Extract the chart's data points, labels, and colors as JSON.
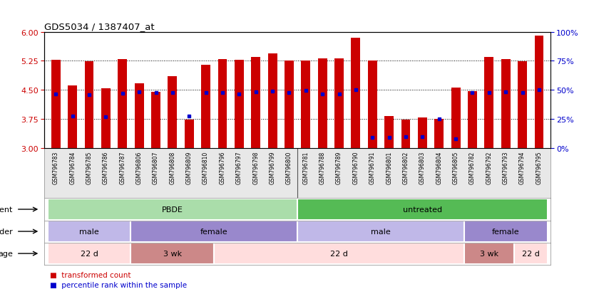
{
  "title": "GDS5034 / 1387407_at",
  "samples": [
    "GSM796783",
    "GSM796784",
    "GSM796785",
    "GSM796786",
    "GSM796787",
    "GSM796806",
    "GSM796807",
    "GSM796808",
    "GSM796809",
    "GSM796810",
    "GSM796796",
    "GSM796797",
    "GSM796798",
    "GSM796799",
    "GSM796800",
    "GSM796781",
    "GSM796788",
    "GSM796789",
    "GSM796790",
    "GSM796791",
    "GSM796801",
    "GSM796802",
    "GSM796803",
    "GSM796804",
    "GSM796805",
    "GSM796782",
    "GSM796792",
    "GSM796793",
    "GSM796794",
    "GSM796795"
  ],
  "bar_heights": [
    5.28,
    4.62,
    5.24,
    4.54,
    5.3,
    4.67,
    4.45,
    4.85,
    3.73,
    5.14,
    5.3,
    5.28,
    5.35,
    5.44,
    5.25,
    5.25,
    5.31,
    5.31,
    5.85,
    5.25,
    3.82,
    3.74,
    3.79,
    3.75,
    4.56,
    4.46,
    5.35,
    5.3,
    5.24,
    5.9
  ],
  "blue_markers": [
    4.4,
    3.82,
    4.38,
    3.8,
    4.41,
    4.45,
    4.43,
    4.43,
    3.82,
    4.44,
    4.44,
    4.4,
    4.45,
    4.47,
    4.43,
    4.48,
    4.4,
    4.4,
    4.51,
    3.27,
    3.27,
    3.29,
    3.3,
    3.75,
    3.24,
    4.43,
    4.44,
    4.45,
    4.43,
    4.51
  ],
  "ymin": 3.0,
  "ymax": 6.0,
  "yticks_left": [
    3,
    3.75,
    4.5,
    5.25,
    6
  ],
  "yticks_right": [
    0,
    25,
    50,
    75,
    100
  ],
  "bar_color": "#cc0000",
  "marker_color": "#0000cc",
  "agent_groups": [
    {
      "label": "PBDE",
      "start": 0,
      "end": 15,
      "color": "#aaddaa"
    },
    {
      "label": "untreated",
      "start": 15,
      "end": 30,
      "color": "#55bb55"
    }
  ],
  "gender_groups": [
    {
      "label": "male",
      "start": 0,
      "end": 5,
      "color": "#c0b8e8"
    },
    {
      "label": "female",
      "start": 5,
      "end": 15,
      "color": "#9988cc"
    },
    {
      "label": "male",
      "start": 15,
      "end": 25,
      "color": "#c0b8e8"
    },
    {
      "label": "female",
      "start": 25,
      "end": 30,
      "color": "#9988cc"
    }
  ],
  "age_groups": [
    {
      "label": "22 d",
      "start": 0,
      "end": 5,
      "color": "#ffdddd"
    },
    {
      "label": "3 wk",
      "start": 5,
      "end": 10,
      "color": "#cc8888"
    },
    {
      "label": "22 d",
      "start": 10,
      "end": 25,
      "color": "#ffdddd"
    },
    {
      "label": "3 wk",
      "start": 25,
      "end": 28,
      "color": "#cc8888"
    },
    {
      "label": "22 d",
      "start": 28,
      "end": 30,
      "color": "#ffdddd"
    }
  ],
  "legend_items": [
    {
      "label": "transformed count",
      "color": "#cc0000"
    },
    {
      "label": "percentile rank within the sample",
      "color": "#0000cc"
    }
  ],
  "tick_bg_color": "#dddddd",
  "grid_color": "#000000",
  "grid_linestyle": "dotted",
  "grid_linewidth": 0.7
}
